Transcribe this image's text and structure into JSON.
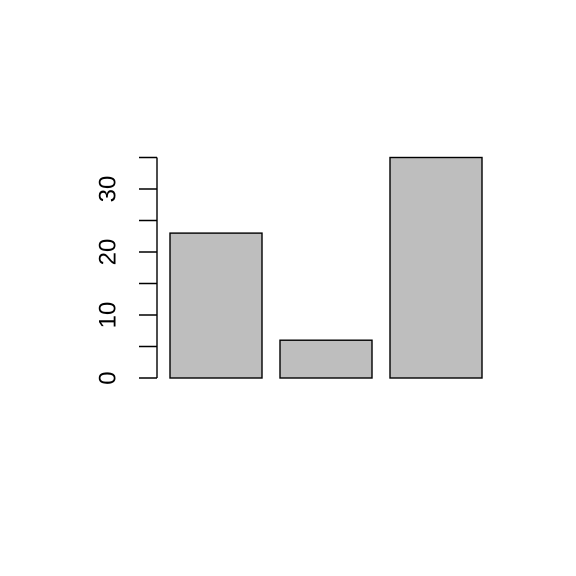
{
  "chart_data": {
    "type": "bar",
    "title": "",
    "xlabel": "",
    "ylabel": "",
    "categories": [
      "",
      "",
      ""
    ],
    "values": [
      23,
      6,
      35
    ],
    "ylim": [
      0,
      35
    ],
    "yticks_major": [
      0,
      10,
      20,
      30
    ],
    "yticks_minor": [
      5,
      15,
      25,
      35
    ],
    "ytick_labels": [
      "0",
      "10",
      "20",
      "30"
    ],
    "bar_fill": "#bebebe",
    "bar_stroke": "#000000",
    "grid": false,
    "legend": "none"
  }
}
